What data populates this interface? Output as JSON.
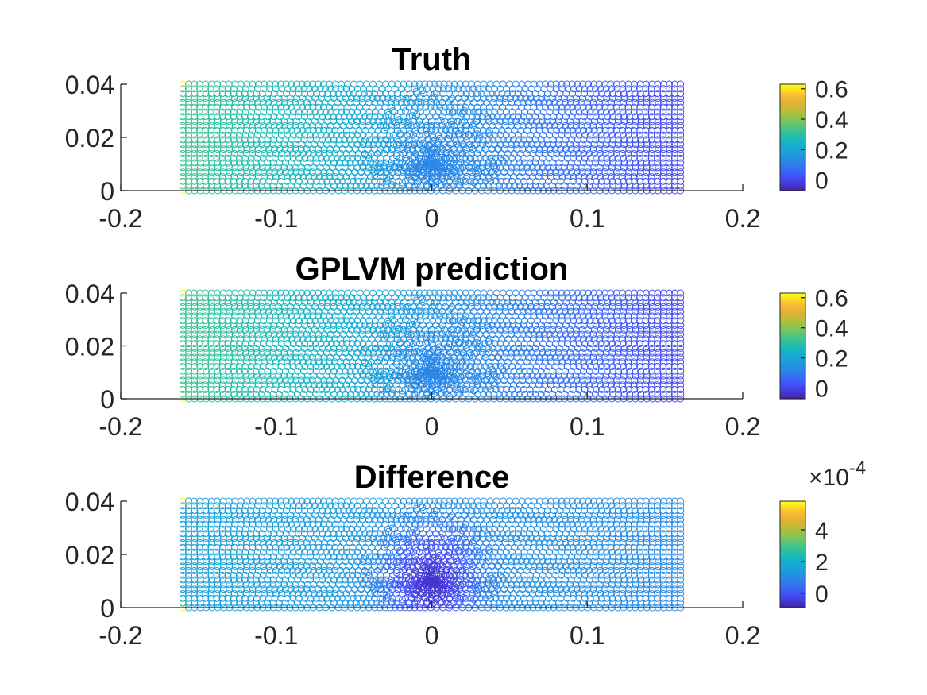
{
  "colormap": [
    "#3e26a8",
    "#4741e8",
    "#3c5ffb",
    "#2f7feb",
    "#1f99e0",
    "#13acd0",
    "#1ebcb3",
    "#43c588",
    "#7dc65a",
    "#b7bd3a",
    "#e2b135",
    "#fdc131",
    "#f9fb15"
  ],
  "axis_color": "#262626",
  "chart_data": [
    {
      "type": "scatter",
      "title": "Truth",
      "xlim": [
        -0.2,
        0.2
      ],
      "ylim": [
        0,
        0.04
      ],
      "x_ticks": [
        "-0.2",
        "-0.1",
        "0",
        "0.1",
        "0.2"
      ],
      "y_ticks": [
        "0",
        "0.02",
        "0.04"
      ],
      "x_range_of_points": [
        -0.16,
        0.16
      ],
      "y_range_of_points": [
        0,
        0.04
      ],
      "colorbar": {
        "clim": [
          -0.07,
          0.63
        ],
        "ticks": [
          "0",
          "0.2",
          "0.4",
          "0.6"
        ],
        "exponent": ""
      },
      "field": {
        "left_value": 0.33,
        "right_value": 0.0,
        "center_value": 0.12,
        "max_value": 0.63
      }
    },
    {
      "type": "scatter",
      "title": "GPLVM prediction",
      "xlim": [
        -0.2,
        0.2
      ],
      "ylim": [
        0,
        0.04
      ],
      "x_ticks": [
        "-0.2",
        "-0.1",
        "0",
        "0.1",
        "0.2"
      ],
      "y_ticks": [
        "0",
        "0.02",
        "0.04"
      ],
      "x_range_of_points": [
        -0.16,
        0.16
      ],
      "y_range_of_points": [
        0,
        0.04
      ],
      "colorbar": {
        "clim": [
          -0.07,
          0.63
        ],
        "ticks": [
          "0",
          "0.2",
          "0.4",
          "0.6"
        ],
        "exponent": ""
      },
      "field": {
        "left_value": 0.33,
        "right_value": 0.0,
        "center_value": 0.12,
        "max_value": 0.63
      }
    },
    {
      "type": "scatter",
      "title": "Difference",
      "xlim": [
        -0.2,
        0.2
      ],
      "ylim": [
        0,
        0.04
      ],
      "x_ticks": [
        "-0.2",
        "-0.1",
        "0",
        "0.1",
        "0.2"
      ],
      "y_ticks": [
        "0",
        "0.02",
        "0.04"
      ],
      "x_range_of_points": [
        -0.16,
        0.16
      ],
      "y_range_of_points": [
        0,
        0.04
      ],
      "colorbar": {
        "clim": [
          -0.9,
          5.8
        ],
        "ticks": [
          "0",
          "2",
          "4"
        ],
        "exponent": "×10-4"
      },
      "field": {
        "left_value": 1.6,
        "right_value": 1.0,
        "center_value": -0.6,
        "max_value": 5.8
      }
    }
  ]
}
